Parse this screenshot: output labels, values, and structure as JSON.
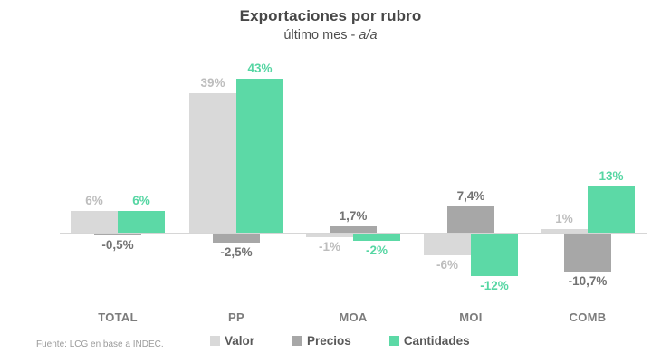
{
  "header": {
    "title": "Exportaciones por rubro",
    "subtitle_prefix": "último mes - ",
    "subtitle_emphasis": "a/a"
  },
  "footer": {
    "source": "Fuente: LCG en base a INDEC."
  },
  "chart_data": {
    "type": "bar",
    "title": "Exportaciones por rubro",
    "subtitle": "último mes - a/a",
    "categories": [
      "TOTAL",
      "PP",
      "MOA",
      "MOI",
      "COMB"
    ],
    "series": [
      {
        "name": "Valor",
        "color": "#d9d9d9",
        "label_color": "#bdbdbd",
        "values": [
          6,
          39,
          -1,
          -6,
          1
        ],
        "labels": [
          "6%",
          "39%",
          "-1%",
          "-6%",
          "1%"
        ]
      },
      {
        "name": "Precios",
        "color": "#a7a7a7",
        "label_color": "#737373",
        "values": [
          -0.5,
          -2.5,
          1.7,
          7.4,
          -10.7
        ],
        "labels": [
          "-0,5%",
          "-2,5%",
          "1,7%",
          "7,4%",
          "-10,7%"
        ]
      },
      {
        "name": "Cantidades",
        "color": "#5cd9a6",
        "label_color": "#56d6a3",
        "values": [
          6,
          43,
          -2,
          -12,
          13
        ],
        "labels": [
          "6%",
          "43%",
          "-2%",
          "-12%",
          "13%"
        ]
      }
    ],
    "legend_position": "bottom",
    "grid": false,
    "ylim": [
      -15,
      46
    ],
    "separator_after_category": "TOTAL",
    "xlabel": "",
    "ylabel": ""
  }
}
